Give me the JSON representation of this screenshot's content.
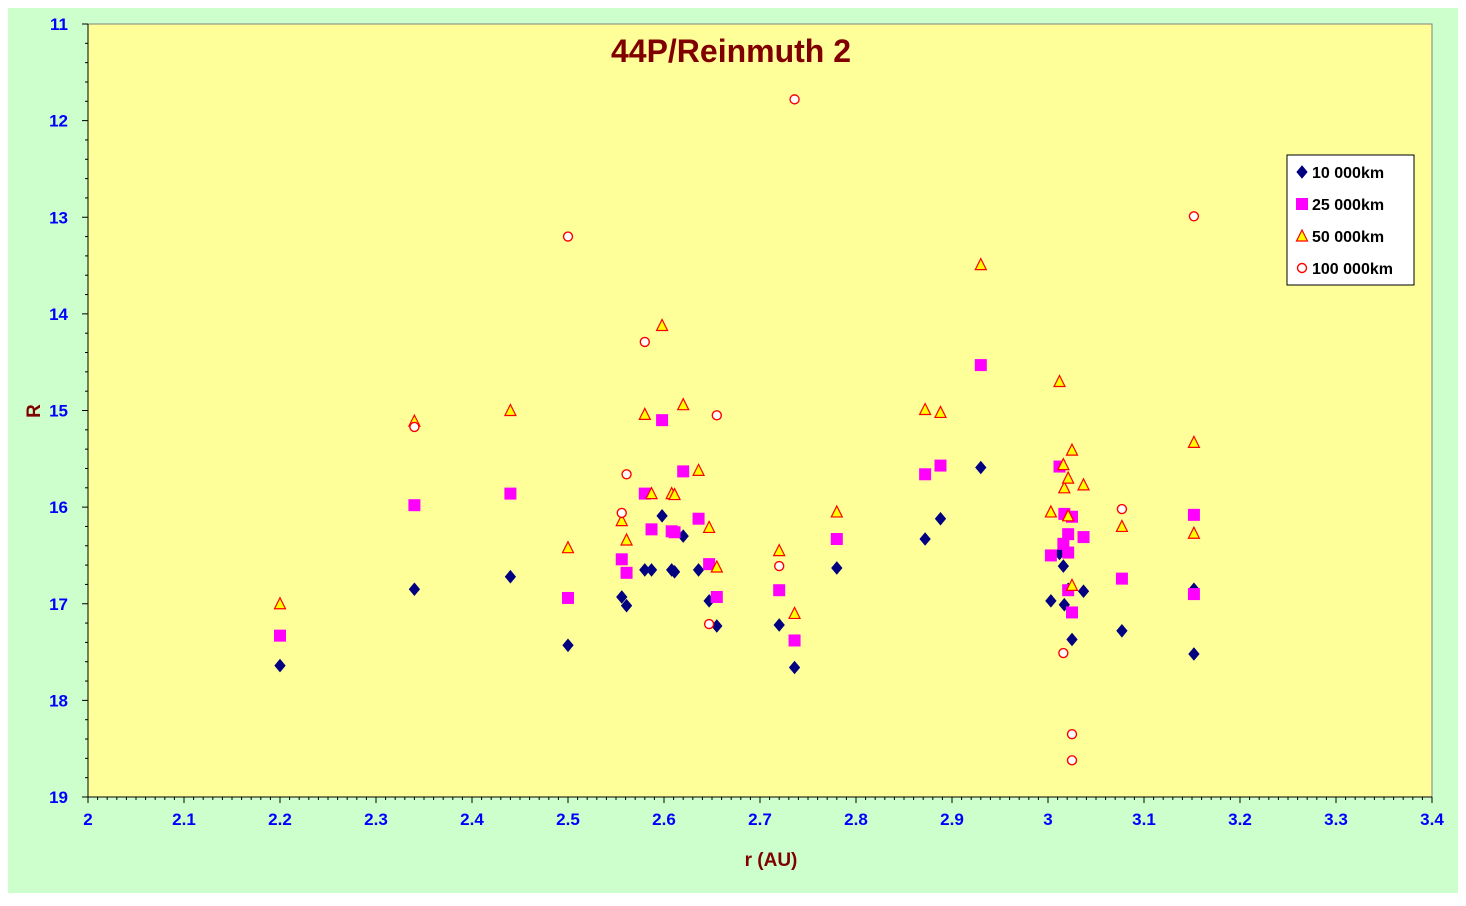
{
  "chart_data": {
    "type": "scatter",
    "title": "44P/Reinmuth 2",
    "xlabel": "r (AU)",
    "ylabel": "R",
    "xlim": [
      2,
      3.4
    ],
    "ylim": [
      11,
      19
    ],
    "y_inverted": true,
    "x_ticks": [
      "2",
      "2.1",
      "2.2",
      "2.3",
      "2.4",
      "2.5",
      "2.6",
      "2.7",
      "2.8",
      "2.9",
      "3",
      "3.1",
      "3.2",
      "3.3",
      "3.4"
    ],
    "y_ticks": [
      "11",
      "12",
      "13",
      "14",
      "15",
      "16",
      "17",
      "18",
      "19"
    ],
    "grid": false,
    "legend_position": "top-right",
    "colors": {
      "page_background": "#CCFFCC",
      "plot_background": "#FFFF99",
      "title": "#800000",
      "axis_label": "#800000",
      "tick_label": "#0000FF"
    },
    "series": [
      {
        "name": "10 000km",
        "marker": "diamond",
        "color": "#000080",
        "points": [
          [
            2.2,
            17.64
          ],
          [
            2.34,
            16.85
          ],
          [
            2.44,
            16.72
          ],
          [
            2.5,
            17.43
          ],
          [
            2.556,
            16.93
          ],
          [
            2.561,
            17.02
          ],
          [
            2.58,
            16.65
          ],
          [
            2.587,
            16.65
          ],
          [
            2.598,
            16.09
          ],
          [
            2.608,
            16.65
          ],
          [
            2.611,
            16.67
          ],
          [
            2.62,
            16.3
          ],
          [
            2.636,
            16.65
          ],
          [
            2.647,
            16.97
          ],
          [
            2.655,
            17.23
          ],
          [
            2.72,
            17.22
          ],
          [
            2.736,
            17.66
          ],
          [
            2.78,
            16.63
          ],
          [
            2.872,
            16.33
          ],
          [
            2.888,
            16.12
          ],
          [
            2.93,
            15.59
          ],
          [
            3.003,
            16.97
          ],
          [
            3.012,
            16.48
          ],
          [
            3.016,
            16.61
          ],
          [
            3.017,
            17.01
          ],
          [
            3.021,
            16.85
          ],
          [
            3.025,
            17.37
          ],
          [
            3.037,
            16.87
          ],
          [
            3.077,
            17.28
          ],
          [
            3.152,
            16.85
          ],
          [
            3.152,
            17.52
          ]
        ]
      },
      {
        "name": "25 000km",
        "marker": "square",
        "color": "#FF00FF",
        "points": [
          [
            2.2,
            17.33
          ],
          [
            2.34,
            15.98
          ],
          [
            2.44,
            15.86
          ],
          [
            2.5,
            16.94
          ],
          [
            2.556,
            16.54
          ],
          [
            2.561,
            16.68
          ],
          [
            2.58,
            15.86
          ],
          [
            2.587,
            16.23
          ],
          [
            2.598,
            15.1
          ],
          [
            2.608,
            16.25
          ],
          [
            2.611,
            16.26
          ],
          [
            2.62,
            15.63
          ],
          [
            2.636,
            16.12
          ],
          [
            2.647,
            16.59
          ],
          [
            2.655,
            16.93
          ],
          [
            2.72,
            16.86
          ],
          [
            2.736,
            17.38
          ],
          [
            2.78,
            16.33
          ],
          [
            2.872,
            15.66
          ],
          [
            2.888,
            15.57
          ],
          [
            2.93,
            14.53
          ],
          [
            3.003,
            16.5
          ],
          [
            3.012,
            15.58
          ],
          [
            3.016,
            16.38
          ],
          [
            3.017,
            16.07
          ],
          [
            3.021,
            16.28
          ],
          [
            3.025,
            16.1
          ],
          [
            3.037,
            16.31
          ],
          [
            3.077,
            16.74
          ],
          [
            3.152,
            16.08
          ],
          [
            3.152,
            16.9
          ],
          [
            3.021,
            16.47
          ],
          [
            3.025,
            17.09
          ],
          [
            3.021,
            16.86
          ]
        ]
      },
      {
        "name": "50 000km",
        "marker": "triangle",
        "color": "#FF0000",
        "fill": "#FFFF00",
        "points": [
          [
            2.2,
            17.0
          ],
          [
            2.34,
            15.11
          ],
          [
            2.44,
            15.0
          ],
          [
            2.5,
            16.42
          ],
          [
            2.556,
            16.14
          ],
          [
            2.561,
            16.34
          ],
          [
            2.58,
            15.04
          ],
          [
            2.587,
            15.86
          ],
          [
            2.598,
            14.12
          ],
          [
            2.608,
            15.86
          ],
          [
            2.611,
            15.87
          ],
          [
            2.62,
            14.94
          ],
          [
            2.636,
            15.62
          ],
          [
            2.647,
            16.21
          ],
          [
            2.655,
            16.62
          ],
          [
            2.72,
            16.45
          ],
          [
            2.736,
            17.1
          ],
          [
            2.78,
            16.05
          ],
          [
            2.872,
            14.99
          ],
          [
            2.888,
            15.02
          ],
          [
            2.93,
            13.49
          ],
          [
            3.003,
            16.05
          ],
          [
            3.012,
            14.7
          ],
          [
            3.016,
            15.56
          ],
          [
            3.017,
            15.8
          ],
          [
            3.021,
            15.7
          ],
          [
            3.025,
            15.41
          ],
          [
            3.037,
            15.77
          ],
          [
            3.077,
            16.2
          ],
          [
            3.152,
            15.33
          ],
          [
            3.152,
            16.27
          ],
          [
            3.021,
            16.09
          ],
          [
            3.025,
            16.81
          ]
        ]
      },
      {
        "name": "100 000km",
        "marker": "circle",
        "color": "#FF0000",
        "fill": "#FFFFFF",
        "points": [
          [
            2.34,
            15.17
          ],
          [
            2.5,
            13.2
          ],
          [
            2.556,
            16.06
          ],
          [
            2.561,
            15.66
          ],
          [
            2.58,
            14.29
          ],
          [
            2.647,
            17.21
          ],
          [
            2.655,
            15.05
          ],
          [
            2.72,
            16.61
          ],
          [
            2.736,
            11.78
          ],
          [
            3.016,
            17.51
          ],
          [
            3.025,
            18.35
          ],
          [
            3.025,
            18.62
          ],
          [
            3.077,
            16.02
          ],
          [
            3.152,
            12.99
          ]
        ]
      }
    ]
  }
}
